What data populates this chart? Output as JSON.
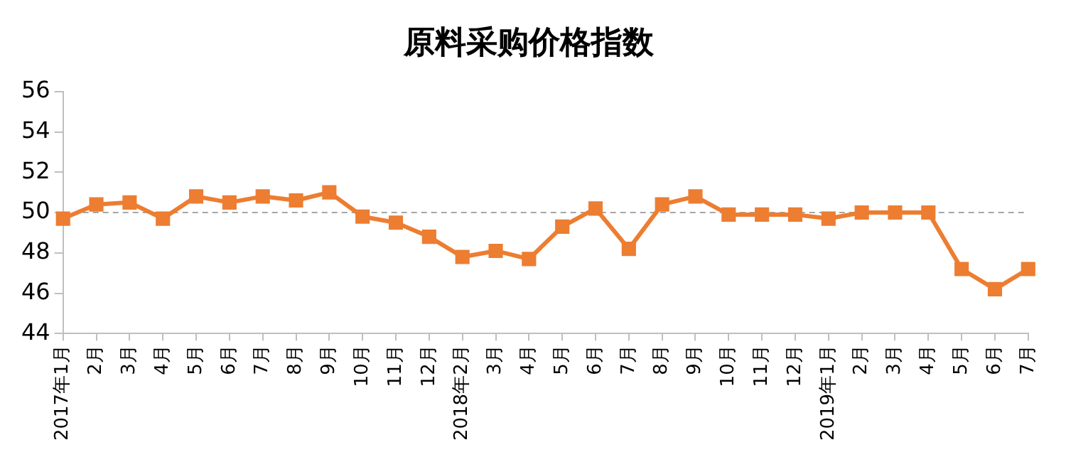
{
  "chart_data": {
    "type": "line",
    "title": "原料采购价格指数",
    "categories": [
      "2017年1月",
      "2月",
      "3月",
      "4月",
      "5月",
      "6月",
      "7月",
      "8月",
      "9月",
      "10月",
      "11月",
      "12月",
      "2018年2月",
      "3月",
      "4月",
      "5月",
      "6月",
      "7月",
      "8月",
      "9月",
      "10月",
      "11月",
      "12月",
      "2019年1月",
      "2月",
      "3月",
      "4月",
      "5月",
      "6月",
      "7月"
    ],
    "series": [
      {
        "color": "#ed7d31",
        "values": [
          49.7,
          50.4,
          50.5,
          49.7,
          50.8,
          50.5,
          50.8,
          50.6,
          51.0,
          49.8,
          49.5,
          48.8,
          47.8,
          48.1,
          47.7,
          49.3,
          50.2,
          48.2,
          50.4,
          50.8,
          49.9,
          49.9,
          49.9,
          49.7,
          50.0,
          50.0,
          50.0,
          47.2,
          46.2,
          47.2
        ]
      }
    ],
    "ylim": [
      44,
      56
    ],
    "yticks": [
      44,
      46,
      48,
      50,
      52,
      54,
      56
    ],
    "ref_lines": [
      {
        "axis": "y",
        "value": 50,
        "color": "#a6a6a6",
        "line_style": "dashed"
      }
    ],
    "grid": false,
    "legend": false,
    "marker": "square",
    "line_style": "solid"
  }
}
